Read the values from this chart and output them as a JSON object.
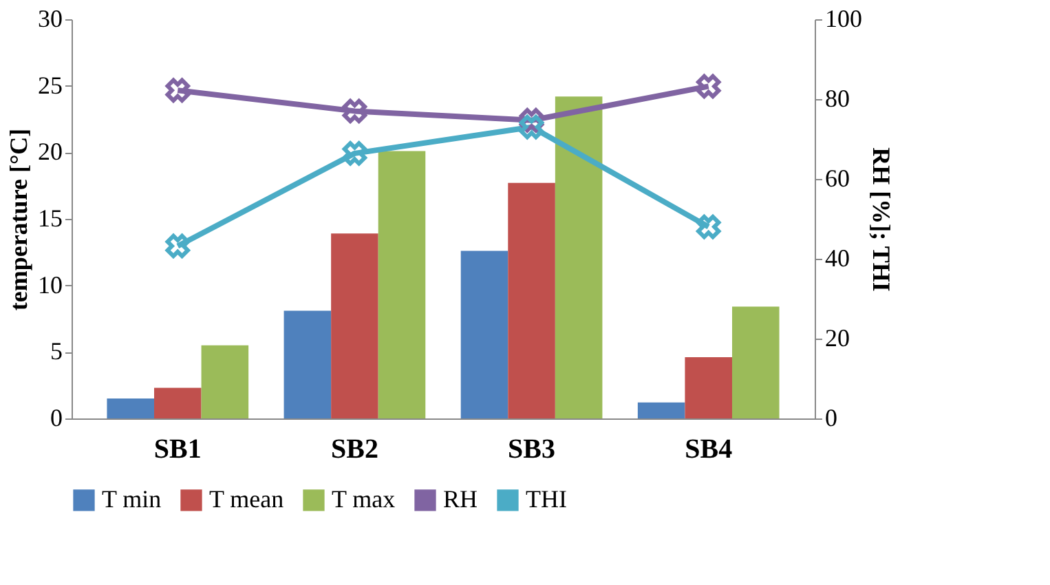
{
  "chart_data": {
    "type": "bar",
    "categories": [
      "SB1",
      "SB2",
      "SB3",
      "SB4"
    ],
    "ylabel": "temperature [°C]",
    "y2label": "RH [%]; THI",
    "ylim": [
      0,
      30
    ],
    "yticks": [
      0,
      5,
      10,
      15,
      20,
      25,
      30
    ],
    "y2lim": [
      0,
      100
    ],
    "y2ticks": [
      0,
      20,
      40,
      60,
      80,
      100
    ],
    "grid": false,
    "legend": "bottom",
    "marker": "cross",
    "series": [
      {
        "name": "T min",
        "color": "#4f81bd",
        "values": [
          1.5,
          8.1,
          12.6,
          1.2
        ]
      },
      {
        "name": "T mean",
        "color": "#c0504d",
        "values": [
          2.3,
          13.9,
          17.7,
          4.6
        ]
      },
      {
        "name": "T max",
        "color": "#9bbb59",
        "values": [
          5.5,
          20.1,
          24.2,
          8.4
        ]
      },
      {
        "name": "RH",
        "type": "line",
        "axis": "y2",
        "color": "#8064a2",
        "values": [
          82.2,
          77.0,
          74.7,
          83.2
        ]
      },
      {
        "name": "THI",
        "type": "line",
        "axis": "y2",
        "color": "#4bacc6",
        "values": [
          43.2,
          66.4,
          73.0,
          48.0
        ]
      }
    ]
  }
}
